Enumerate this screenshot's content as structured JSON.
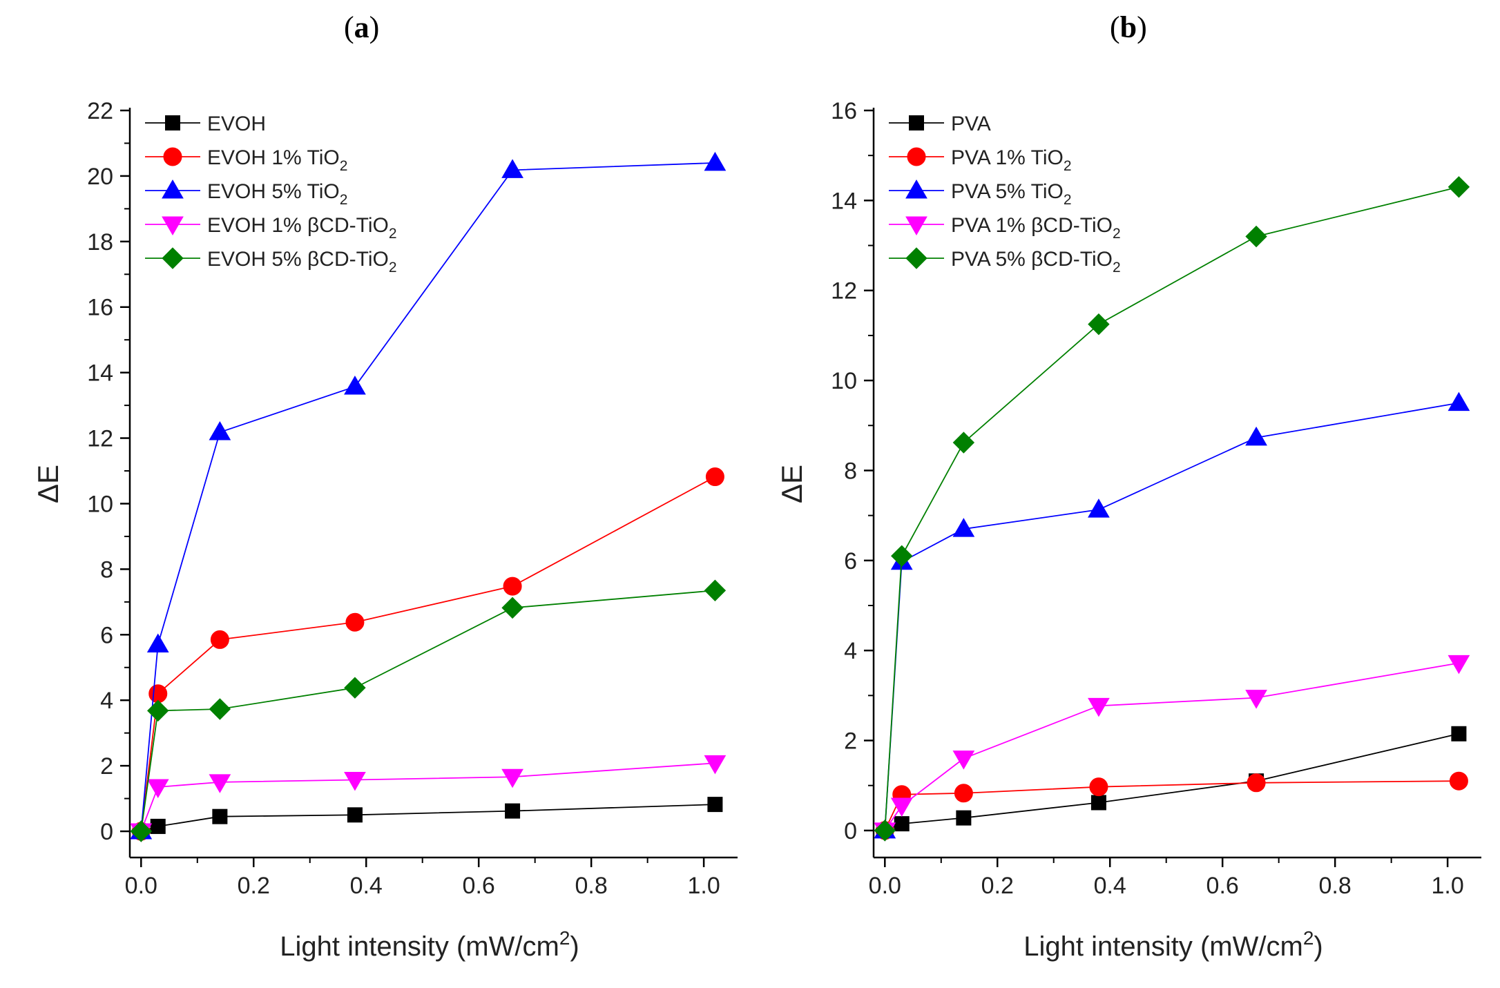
{
  "chart_data": [
    {
      "type": "line",
      "panel_label": "a",
      "xlabel": "Light intensity (mW/cm",
      "xlabel_sup": "2",
      "xlabel_close": ")",
      "ylabel": "ΔE",
      "xlim": [
        -0.02,
        1.06
      ],
      "ylim": [
        -0.8,
        22
      ],
      "xticks": [
        0.0,
        0.2,
        0.4,
        0.6,
        0.8,
        1.0
      ],
      "xtick_labels": [
        "0.0",
        "0.2",
        "0.4",
        "0.6",
        "0.8",
        "1.0"
      ],
      "yticks": [
        0,
        2,
        4,
        6,
        8,
        10,
        12,
        14,
        16,
        18,
        20,
        22
      ],
      "ytick_labels": [
        "0",
        "2",
        "4",
        "6",
        "8",
        "10",
        "12",
        "14",
        "16",
        "18",
        "20",
        "22"
      ],
      "grid": false,
      "legend_position": "top-left",
      "x": [
        0,
        0.03,
        0.14,
        0.38,
        0.66,
        1.02
      ],
      "series": [
        {
          "name": "EVOH",
          "name_sub": "",
          "name_tail": "",
          "color": "#000000",
          "marker": "square",
          "values": [
            0,
            0.15,
            0.45,
            0.5,
            0.62,
            0.82
          ]
        },
        {
          "name": "EVOH 1% TiO",
          "name_sub": "2",
          "name_tail": "",
          "color": "#ff0000",
          "marker": "circle",
          "values": [
            0,
            4.2,
            5.85,
            6.38,
            7.48,
            10.82
          ]
        },
        {
          "name": "EVOH 5% TiO",
          "name_sub": "2",
          "name_tail": "",
          "color": "#0000ff",
          "marker": "triangle-up",
          "values": [
            0,
            5.7,
            12.18,
            13.57,
            20.18,
            20.4
          ]
        },
        {
          "name": "EVOH 1% βCD-TiO",
          "name_sub": "2",
          "name_tail": "",
          "color": "#ff00ff",
          "marker": "triangle-down",
          "values": [
            0,
            1.35,
            1.5,
            1.57,
            1.66,
            2.08
          ]
        },
        {
          "name": "EVOH 5% βCD-TiO",
          "name_sub": "2",
          "name_tail": "",
          "color": "#008000",
          "marker": "diamond",
          "values": [
            0,
            3.68,
            3.73,
            4.38,
            6.82,
            7.35
          ]
        }
      ]
    },
    {
      "type": "line",
      "panel_label": "b",
      "xlabel": "Light intensity (mW/cm",
      "xlabel_sup": "2",
      "xlabel_close": ")",
      "ylabel": "ΔE",
      "xlim": [
        -0.02,
        1.06
      ],
      "ylim": [
        -0.6,
        16
      ],
      "xticks": [
        0.0,
        0.2,
        0.4,
        0.6,
        0.8,
        1.0
      ],
      "xtick_labels": [
        "0.0",
        "0.2",
        "0.4",
        "0.6",
        "0.8",
        "1.0"
      ],
      "yticks": [
        0,
        2,
        4,
        6,
        8,
        10,
        12,
        14,
        16
      ],
      "ytick_labels": [
        "0",
        "2",
        "4",
        "6",
        "8",
        "10",
        "12",
        "14",
        "16"
      ],
      "grid": false,
      "legend_position": "top-left",
      "x": [
        0,
        0.03,
        0.14,
        0.38,
        0.66,
        1.02
      ],
      "series": [
        {
          "name": "PVA",
          "name_sub": "",
          "name_tail": "",
          "color": "#000000",
          "marker": "square",
          "values": [
            0,
            0.15,
            0.28,
            0.62,
            1.1,
            2.15
          ]
        },
        {
          "name": "PVA 1% TiO",
          "name_sub": "2",
          "name_tail": "",
          "color": "#ff0000",
          "marker": "circle",
          "values": [
            0,
            0.8,
            0.83,
            0.97,
            1.06,
            1.1
          ]
        },
        {
          "name": "PVA 5% TiO",
          "name_sub": "2",
          "name_tail": "",
          "color": "#0000ff",
          "marker": "triangle-up",
          "values": [
            0,
            5.97,
            6.7,
            7.13,
            8.73,
            9.5
          ]
        },
        {
          "name": "PVA 1% βCD-TiO",
          "name_sub": "2",
          "name_tail": "",
          "color": "#ff00ff",
          "marker": "triangle-down",
          "values": [
            0,
            0.55,
            1.6,
            2.77,
            2.95,
            3.72
          ]
        },
        {
          "name": "PVA 5% βCD-TiO",
          "name_sub": "2",
          "name_tail": "",
          "color": "#008000",
          "marker": "diamond",
          "values": [
            0,
            6.1,
            8.62,
            11.25,
            13.2,
            14.3
          ]
        }
      ]
    }
  ]
}
